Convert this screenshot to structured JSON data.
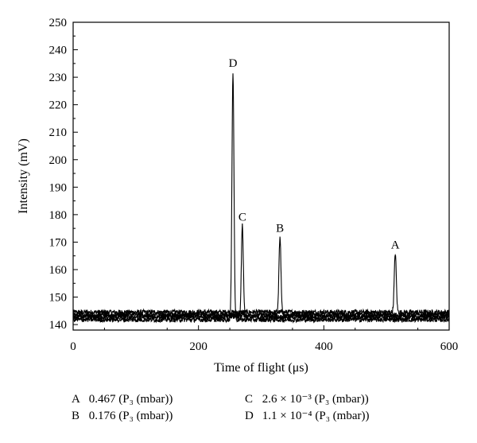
{
  "chart_data": {
    "type": "line",
    "xlabel": "Time of flight (μs)",
    "ylabel": "Intensity (mV)",
    "xlim": [
      0,
      600
    ],
    "ylim": [
      138,
      250
    ],
    "xticks": [
      0,
      200,
      400,
      600
    ],
    "yticks": [
      140,
      150,
      160,
      170,
      180,
      190,
      200,
      210,
      220,
      230,
      240,
      250
    ],
    "grid": false,
    "line_color": "#000000",
    "series": [
      {
        "label": "A",
        "peak_x": 514,
        "peak_y": 166,
        "baseline": 144.5
      },
      {
        "label": "B",
        "peak_x": 330,
        "peak_y": 172,
        "baseline": 143.5
      },
      {
        "label": "C",
        "peak_x": 270,
        "peak_y": 176,
        "baseline": 142.8
      },
      {
        "label": "D",
        "peak_x": 255,
        "peak_y": 232,
        "baseline": 141.8
      }
    ],
    "legend": [
      {
        "key": "A",
        "value": "0.467",
        "unit": "(P₃ (mbar))"
      },
      {
        "key": "B",
        "value": "0.176",
        "unit": "(P₃ (mbar))"
      },
      {
        "key": "C",
        "value": "2.6 × 10⁻³",
        "unit": "(P₃ (mbar))"
      },
      {
        "key": "D",
        "value": "1.1 × 10⁻⁴",
        "unit": "(P₃ (mbar))"
      }
    ]
  }
}
